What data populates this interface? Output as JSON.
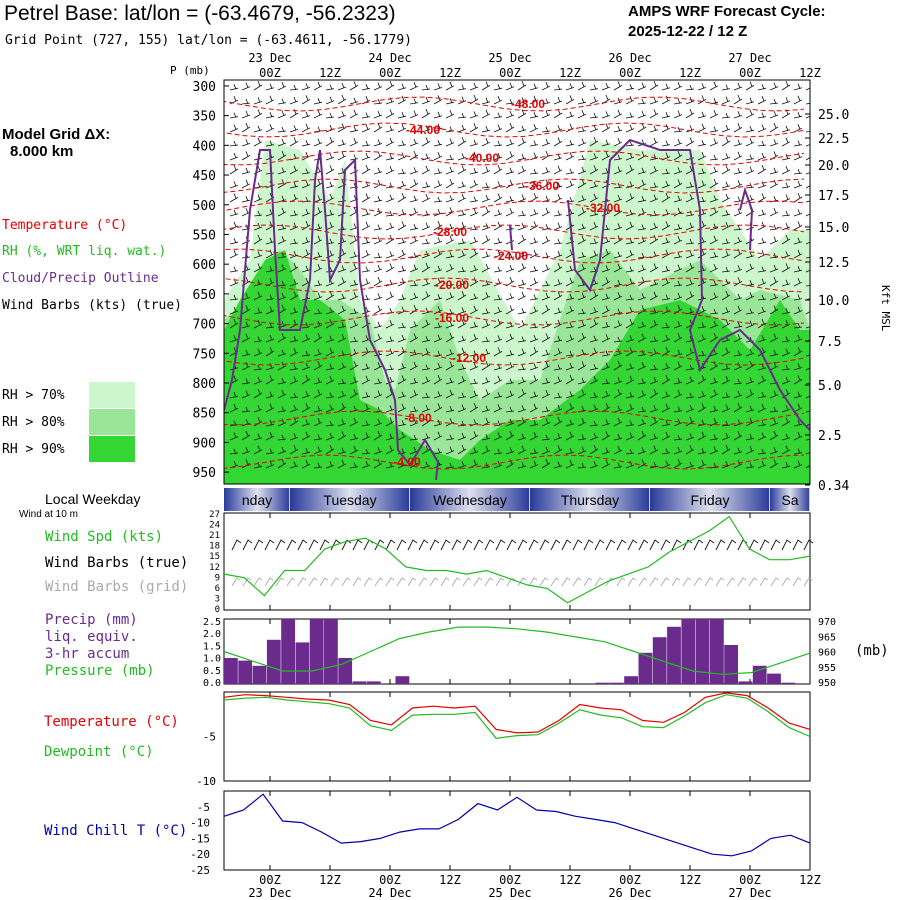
{
  "header": {
    "title": "Petrel Base:  lat/lon = (-63.4679, -56.2323)",
    "grid_point": "Grid Point (727, 155) lat/lon = (-63.4611, -56.1779)",
    "cycle_line1": "AMPS WRF Forecast Cycle:",
    "cycle_line2": "2025-12-22 / 12  Z"
  },
  "legend": {
    "model_grid_line1": "Model Grid ΔX:",
    "model_grid_line2": "8.000 km",
    "temperature": "Temperature (°C)",
    "rh": "RH (%, WRT liq. wat.)",
    "cloud": "Cloud/Precip Outline",
    "wind_barbs": "Wind Barbs (kts) (true)",
    "rh_levels": [
      {
        "label": "RH > 70%",
        "color": "#ccf7cc"
      },
      {
        "label": "RH > 80%",
        "color": "#99e699"
      },
      {
        "label": "RH > 90%",
        "color": "#33d633"
      }
    ]
  },
  "colors": {
    "temp": "#e60000",
    "dew": "#22bb22",
    "cloud": "#6a2b8c",
    "wind_speed": "#22bb22",
    "precip": "#6a2b8c",
    "chill": "#0000aa",
    "weekday_dark": "#2a3a99"
  },
  "panels_text": {
    "local_weekday": "Local Weekday",
    "wind_at": "Wind at 10 m",
    "wind_spd": "Wind Spd (kts)",
    "wind_barbs_true": "Wind Barbs (true)",
    "wind_barbs_grid": "Wind Barbs (grid)",
    "precip1": "Precip (mm)",
    "precip2": "liq. equiv.",
    "precip3": "3-hr accum",
    "pressure": "Pressure (mb)",
    "pressure_unit": "(mb)",
    "temperature": "Temperature (°C)",
    "dewpoint": "Dewpoint (°C)",
    "wind_chill": "Wind Chill T (°C)",
    "p_axis_label": "P (mb)",
    "kft_label": "Kft MSL"
  },
  "time_axis": {
    "ticks": [
      "00Z",
      "12Z",
      "00Z",
      "12Z",
      "00Z",
      "12Z",
      "00Z",
      "12Z",
      "00Z",
      "12Z"
    ],
    "dates": [
      "23 Dec",
      "24 Dec",
      "25 Dec",
      "26 Dec",
      "27 Dec"
    ]
  },
  "weekdays": [
    "nday",
    "Tuesday",
    "Wednesday",
    "Thursday",
    "Friday",
    "Sa"
  ],
  "chart_data": [
    {
      "type": "heatmap",
      "title": "Time-height cross section",
      "ylabel": "P (mb)",
      "pressure_ticks": [
        "300",
        "350",
        "400",
        "450",
        "500",
        "550",
        "600",
        "650",
        "700",
        "750",
        "800",
        "850",
        "900",
        "950"
      ],
      "height_ticks": [
        "25.0",
        "22.5",
        "20.0",
        "17.5",
        "15.0",
        "12.5",
        "10.0",
        "7.5",
        "5.0",
        "2.5",
        "0.34"
      ],
      "isotherm_labels": [
        "-48.00",
        "-44.00",
        "-40.00",
        "-36.00",
        "-32.00",
        "-28.00",
        "-24.00",
        "-20.00",
        "-16.00",
        "-12.00",
        "-8.00",
        "-4.00"
      ]
    },
    {
      "type": "line",
      "title": "Wind Spd (kts)",
      "yticks": [
        "27",
        "24",
        "21",
        "18",
        "15",
        "12",
        "9",
        "6",
        "3",
        "0"
      ],
      "ylim": [
        0,
        27
      ],
      "values": [
        10,
        9,
        4,
        11,
        11,
        17,
        19,
        20,
        17,
        12,
        11,
        11,
        10,
        11,
        9,
        7,
        6,
        2,
        5,
        8,
        10,
        12,
        16,
        19,
        22,
        26,
        17,
        14,
        14,
        15
      ]
    },
    {
      "type": "bar",
      "title": "Precip (mm) 3-hr accum / Pressure (mb)",
      "precip_yticks": [
        "2.5",
        "2.0",
        "1.5",
        "1.0",
        "0.5",
        "0.0"
      ],
      "precip_ylim": [
        0,
        2.5
      ],
      "precip_values": [
        1.0,
        0.9,
        0.7,
        1.7,
        2.5,
        1.6,
        2.5,
        2.5,
        1.0,
        0.1,
        0.1,
        0.0,
        0.3,
        0.0,
        0.0,
        0.0,
        0.0,
        0.0,
        0.0,
        0.0,
        0.0,
        0.0,
        0.0,
        0.0,
        0.0,
        0.0,
        0.05,
        0.05,
        0.3,
        1.2,
        1.8,
        2.2,
        2.5,
        2.5,
        2.5,
        1.5,
        0.1,
        0.7,
        0.4,
        0.05,
        0.0
      ],
      "pressure_yticks": [
        "970",
        "965",
        "960",
        "955",
        "950"
      ],
      "pressure_ylim": [
        950,
        970
      ],
      "pressure_values": [
        960,
        957,
        954,
        954,
        956,
        960,
        964,
        966,
        967.5,
        967.5,
        967,
        966,
        964.5,
        963,
        960,
        957,
        954,
        953,
        953.5,
        956.5,
        959.5
      ]
    },
    {
      "type": "line",
      "title": "Temperature / Dewpoint (°C)",
      "yticks": [
        "-5",
        "-10"
      ],
      "ylim": [
        -10,
        0
      ],
      "series": [
        {
          "name": "Temperature",
          "values": [
            -0.6,
            -0.3,
            -0.4,
            -0.6,
            -0.8,
            -0.9,
            -1.4,
            -3.2,
            -3.7,
            -1.8,
            -1.6,
            -1.8,
            -1.6,
            -4.2,
            -4.6,
            -4.5,
            -3.2,
            -1.4,
            -1.8,
            -2.0,
            -3.2,
            -3.4,
            -2.3,
            -0.6,
            -0.1,
            -0.4,
            -1.8,
            -3.5,
            -4.2
          ]
        },
        {
          "name": "Dewpoint",
          "values": [
            -0.9,
            -0.7,
            -0.6,
            -0.9,
            -1.1,
            -1.3,
            -1.8,
            -3.8,
            -4.3,
            -2.6,
            -2.5,
            -2.5,
            -2.3,
            -5.2,
            -4.9,
            -4.8,
            -3.5,
            -2.0,
            -2.6,
            -2.9,
            -3.9,
            -4.0,
            -2.7,
            -1.2,
            -0.3,
            -0.7,
            -2.2,
            -4.0,
            -5.0
          ]
        }
      ]
    },
    {
      "type": "line",
      "title": "Wind Chill T (°C)",
      "yticks": [
        "-5",
        "-10",
        "-15",
        "-20",
        "-25"
      ],
      "ylim": [
        -25,
        0
      ],
      "values": [
        -8,
        -6,
        -1,
        -9.5,
        -10,
        -13,
        -16.5,
        -16,
        -15,
        -13,
        -12,
        -12,
        -9,
        -4,
        -6,
        -2,
        -6,
        -6.5,
        -8,
        -9,
        -10,
        -12,
        -14,
        -16,
        -18,
        -20,
        -20.5,
        -19,
        -15,
        -14,
        -16.5
      ]
    }
  ]
}
